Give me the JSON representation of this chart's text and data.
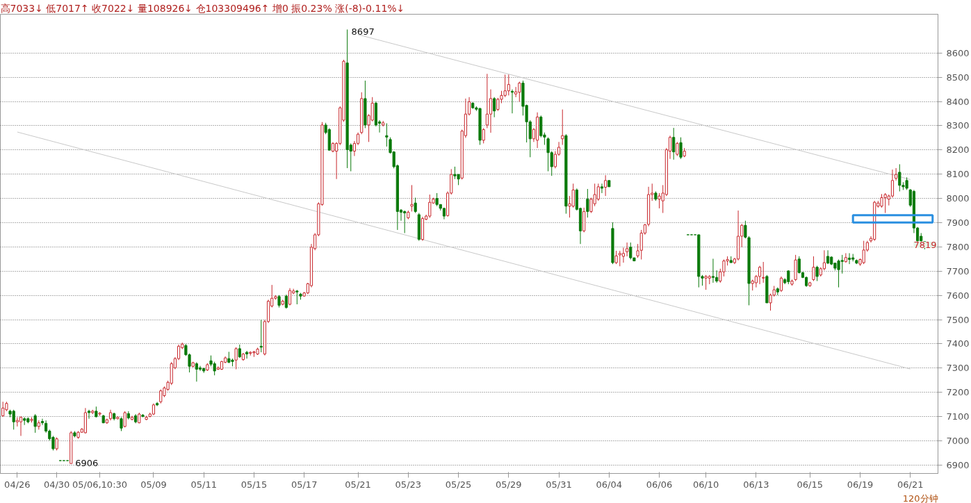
{
  "chart_data": {
    "type": "candlestick",
    "title": "高7033↓ 低7017↑ 收7022↓ 量108926↓ 仓103309496↑ 增0 振0.23% 涨(-8)-0.11%↓",
    "categories": [
      null,
      null,
      null,
      null,
      "04/26",
      null,
      null,
      null,
      null,
      null,
      null,
      null,
      null,
      null,
      null,
      "04/30",
      null,
      null,
      null,
      null,
      null,
      null,
      null,
      null,
      null,
      null,
      null,
      "05/06,10:30",
      null,
      null,
      null,
      null,
      null,
      null,
      null,
      null,
      null,
      null,
      null,
      null,
      null,
      null,
      "05/09",
      null,
      null,
      null,
      null,
      null,
      null,
      null,
      null,
      null,
      null,
      null,
      null,
      null,
      "05/11",
      null,
      null,
      null,
      null,
      null,
      null,
      null,
      null,
      null,
      null,
      null,
      null,
      null,
      "05/15",
      null,
      null,
      null,
      null,
      null,
      null,
      null,
      null,
      null,
      null,
      null,
      null,
      null,
      "05/17",
      null,
      null,
      null,
      null,
      null,
      null,
      null,
      null,
      null,
      null,
      null,
      null,
      null,
      null,
      "05/21",
      null,
      null,
      null,
      null,
      null,
      null,
      null,
      null,
      null,
      null,
      null,
      null,
      null,
      "05/23",
      null,
      null,
      null,
      null,
      null,
      null,
      null,
      null,
      null,
      null,
      null,
      null,
      null,
      "05/25",
      null,
      null,
      null,
      null,
      null,
      null,
      null,
      null,
      null,
      null,
      null,
      null,
      null,
      "05/29",
      null,
      null,
      null,
      null,
      null,
      null,
      null,
      null,
      null,
      null,
      null,
      null,
      null,
      "05/31",
      null,
      null,
      null,
      null,
      null,
      null,
      null,
      null,
      null,
      null,
      null,
      null,
      null,
      "06/04",
      null,
      null,
      null,
      null,
      null,
      null,
      null,
      null,
      null,
      null,
      null,
      null,
      null,
      "06/06",
      null,
      null,
      null,
      null,
      null,
      null,
      null,
      null,
      null,
      null,
      null,
      null,
      "06/10",
      null,
      null,
      null,
      null,
      null,
      null,
      null,
      null,
      null,
      null,
      null,
      null,
      null,
      "06/13",
      null,
      null,
      null,
      null,
      null,
      null,
      null,
      null,
      null,
      null,
      null,
      null,
      null,
      null,
      "06/15",
      null,
      null,
      null,
      null,
      null,
      null,
      null,
      null,
      null,
      null,
      null,
      null,
      null,
      "06/19",
      null,
      null,
      null,
      null,
      null,
      null,
      null,
      null,
      null,
      null,
      null,
      null,
      null,
      "06/21",
      null,
      null,
      null,
      null
    ],
    "ohlc": [
      [
        7103,
        7161,
        7099,
        7135
      ],
      [
        7128,
        7161,
        7122,
        7154
      ],
      [
        7122,
        7128,
        7097,
        7110
      ],
      [
        7122,
        7128,
        7046,
        7078
      ],
      [
        7078,
        7097,
        7059,
        7084
      ],
      [
        7078,
        7100,
        7020,
        7097
      ],
      [
        7091,
        7097,
        7065,
        7084
      ],
      [
        7091,
        7097,
        7072,
        7078
      ],
      [
        7084,
        7097,
        7075,
        7088
      ],
      [
        7103,
        7110,
        7033,
        7059
      ],
      [
        7059,
        7084,
        7046,
        7074
      ],
      [
        7080,
        7091,
        7065,
        7074
      ],
      [
        7072,
        7084,
        7033,
        7040
      ],
      [
        7040,
        7046,
        7001,
        7008
      ],
      [
        7014,
        7020,
        6960,
        6967
      ],
      [
        6967,
        7014,
        6960,
        7008
      ],
      [
        6918,
        6918,
        6918,
        6918
      ],
      [
        6918,
        6918,
        6918,
        6918
      ],
      [
        6918,
        6918,
        6918,
        6918
      ],
      [
        6906,
        7040,
        6906,
        7033
      ],
      [
        7033,
        7040,
        7014,
        7020
      ],
      [
        7014,
        7040,
        7008,
        7035
      ],
      [
        7035,
        7052,
        7033,
        7048
      ],
      [
        7033,
        7135,
        7030,
        7116
      ],
      [
        7122,
        7128,
        7091,
        7116
      ],
      [
        7116,
        7128,
        7110,
        7122
      ],
      [
        7122,
        7141,
        7097,
        7099
      ],
      [
        7110,
        7118,
        7103,
        7114
      ],
      [
        7103,
        7107,
        7072,
        7074
      ],
      [
        7074,
        7091,
        7070,
        7087
      ],
      [
        7091,
        7128,
        7084,
        7116
      ],
      [
        7112,
        7116,
        7084,
        7091
      ],
      [
        7091,
        7100,
        7088,
        7097
      ],
      [
        7091,
        7097,
        7040,
        7052
      ],
      [
        7059,
        7122,
        7055,
        7116
      ],
      [
        7112,
        7122,
        7088,
        7094
      ],
      [
        7088,
        7103,
        7084,
        7097
      ],
      [
        7103,
        7110,
        7072,
        7078
      ],
      [
        7074,
        7116,
        7072,
        7110
      ],
      [
        7106,
        7110,
        7097,
        7100
      ],
      [
        7088,
        7103,
        7085,
        7097
      ],
      [
        7100,
        7116,
        7097,
        7110
      ],
      [
        7110,
        7154,
        7106,
        7148
      ],
      [
        7154,
        7160,
        7143,
        7148
      ],
      [
        7161,
        7212,
        7154,
        7206
      ],
      [
        7186,
        7224,
        7180,
        7218
      ],
      [
        7212,
        7248,
        7206,
        7241
      ],
      [
        7237,
        7325,
        7230,
        7318
      ],
      [
        7301,
        7345,
        7295,
        7339
      ],
      [
        7339,
        7397,
        7333,
        7390
      ],
      [
        7384,
        7405,
        7378,
        7399
      ],
      [
        7393,
        7399,
        7350,
        7355
      ],
      [
        7355,
        7360,
        7282,
        7307
      ],
      [
        7307,
        7326,
        7303,
        7322
      ],
      [
        7318,
        7324,
        7244,
        7295
      ],
      [
        7301,
        7309,
        7288,
        7295
      ],
      [
        7298,
        7301,
        7280,
        7288
      ],
      [
        7292,
        7320,
        7288,
        7314
      ],
      [
        7330,
        7352,
        7307,
        7316
      ],
      [
        7318,
        7326,
        7270,
        7288
      ],
      [
        7295,
        7307,
        7292,
        7301
      ],
      [
        7295,
        7330,
        7292,
        7327
      ],
      [
        7324,
        7348,
        7320,
        7342
      ],
      [
        7339,
        7367,
        7320,
        7324
      ],
      [
        7333,
        7339,
        7307,
        7327
      ],
      [
        7333,
        7386,
        7295,
        7380
      ],
      [
        7380,
        7397,
        7342,
        7346
      ],
      [
        7335,
        7362,
        7330,
        7358
      ],
      [
        7365,
        7371,
        7339,
        7358
      ],
      [
        7361,
        7369,
        7352,
        7365
      ],
      [
        7363,
        7371,
        7346,
        7367
      ],
      [
        7358,
        7384,
        7354,
        7378
      ],
      [
        7390,
        7499,
        7365,
        7386
      ],
      [
        7358,
        7499,
        7352,
        7492
      ],
      [
        7492,
        7582,
        7486,
        7576
      ],
      [
        7556,
        7643,
        7550,
        7588
      ],
      [
        7588,
        7601,
        7582,
        7595
      ],
      [
        7595,
        7601,
        7550,
        7559
      ],
      [
        7563,
        7582,
        7559,
        7576
      ],
      [
        7597,
        7603,
        7545,
        7550
      ],
      [
        7563,
        7630,
        7559,
        7620
      ],
      [
        7610,
        7627,
        7605,
        7618
      ],
      [
        7618,
        7622,
        7563,
        7614
      ],
      [
        7605,
        7610,
        7582,
        7597
      ],
      [
        7597,
        7614,
        7595,
        7610
      ],
      [
        7610,
        7652,
        7605,
        7648
      ],
      [
        7640,
        7812,
        7633,
        7799
      ],
      [
        7793,
        7857,
        7786,
        7850
      ],
      [
        7850,
        7984,
        7844,
        7978
      ],
      [
        7975,
        8315,
        7970,
        8303
      ],
      [
        8303,
        8312,
        8265,
        8272
      ],
      [
        8284,
        8290,
        8199,
        8199
      ],
      [
        8195,
        8232,
        8190,
        8227
      ],
      [
        8195,
        8232,
        8080,
        8227
      ],
      [
        8227,
        8380,
        8220,
        8374
      ],
      [
        8323,
        8572,
        8316,
        8566
      ],
      [
        8559,
        8697,
        8125,
        8201
      ],
      [
        8220,
        8227,
        8112,
        8195
      ],
      [
        8195,
        8237,
        8175,
        8227
      ],
      [
        8227,
        8272,
        8220,
        8265
      ],
      [
        8272,
        8438,
        8265,
        8412
      ],
      [
        8412,
        8486,
        8290,
        8303
      ],
      [
        8303,
        8348,
        8233,
        8342
      ],
      [
        8323,
        8418,
        8318,
        8393
      ],
      [
        8393,
        8400,
        8297,
        8303
      ],
      [
        8316,
        8323,
        8272,
        8310
      ],
      [
        8303,
        8320,
        8297,
        8312
      ],
      [
        8259,
        8310,
        8214,
        8253
      ],
      [
        8243,
        8252,
        8185,
        8189
      ],
      [
        8192,
        8195,
        8124,
        8131
      ],
      [
        8135,
        8140,
        7870,
        7946
      ],
      [
        7952,
        7956,
        7908,
        7943
      ],
      [
        7946,
        7950,
        7857,
        7940
      ],
      [
        7920,
        7950,
        7914,
        7943
      ],
      [
        7968,
        8055,
        7946,
        7975
      ],
      [
        7981,
        8003,
        7940,
        7946
      ],
      [
        7933,
        7940,
        7825,
        7831
      ],
      [
        7831,
        7924,
        7825,
        7917
      ],
      [
        7914,
        7933,
        7910,
        7927
      ],
      [
        7927,
        8016,
        7920,
        7984
      ],
      [
        7981,
        8003,
        7978,
        7997
      ],
      [
        8000,
        8022,
        7968,
        7975
      ],
      [
        7975,
        7975,
        7950,
        7959
      ],
      [
        7959,
        7962,
        7914,
        7927
      ],
      [
        7929,
        8029,
        7925,
        8022
      ],
      [
        8022,
        8121,
        8016,
        8099
      ],
      [
        8099,
        8131,
        8080,
        8093
      ],
      [
        8099,
        8099,
        8055,
        8080
      ],
      [
        8084,
        8284,
        8078,
        8278
      ],
      [
        8259,
        8412,
        8250,
        8348
      ],
      [
        8348,
        8418,
        8342,
        8399
      ],
      [
        8393,
        8397,
        8370,
        8374
      ],
      [
        8374,
        8380,
        8361,
        8368
      ],
      [
        8371,
        8374,
        8221,
        8240
      ],
      [
        8240,
        8290,
        8227,
        8284
      ],
      [
        8303,
        8514,
        8290,
        8348
      ],
      [
        8348,
        8450,
        8271,
        8412
      ],
      [
        8412,
        8418,
        8335,
        8361
      ],
      [
        8367,
        8415,
        8361,
        8409
      ],
      [
        8409,
        8444,
        8393,
        8425
      ],
      [
        8425,
        8511,
        8418,
        8444
      ],
      [
        8444,
        8511,
        8425,
        8470
      ],
      [
        8442,
        8450,
        8351,
        8438
      ],
      [
        8431,
        8460,
        8418,
        8440
      ],
      [
        8438,
        8482,
        8399,
        8476
      ],
      [
        8476,
        8486,
        8342,
        8380
      ],
      [
        8384,
        8387,
        8231,
        8316
      ],
      [
        8316,
        8323,
        8170,
        8246
      ],
      [
        8246,
        8290,
        8233,
        8285
      ],
      [
        8240,
        8355,
        8208,
        8336
      ],
      [
        8336,
        8342,
        8252,
        8259
      ],
      [
        8262,
        8272,
        8221,
        8253
      ],
      [
        8246,
        8252,
        8112,
        8189
      ],
      [
        8189,
        8195,
        8093,
        8131
      ],
      [
        8131,
        8195,
        8124,
        8182
      ],
      [
        8182,
        8233,
        8176,
        8211
      ],
      [
        8246,
        8367,
        8221,
        8259
      ],
      [
        8259,
        8265,
        7937,
        7968
      ],
      [
        7968,
        8010,
        7921,
        7978
      ],
      [
        7968,
        8061,
        7962,
        8035
      ],
      [
        8035,
        8041,
        7950,
        7955
      ],
      [
        7959,
        7962,
        7812,
        7866
      ],
      [
        7866,
        7962,
        7860,
        7946
      ],
      [
        7997,
        8039,
        7921,
        7946
      ],
      [
        7946,
        8003,
        7940,
        7997
      ],
      [
        7978,
        8061,
        7968,
        8016
      ],
      [
        7997,
        8061,
        7990,
        8048
      ],
      [
        8048,
        8061,
        8022,
        8042
      ],
      [
        8046,
        8096,
        8010,
        8074
      ],
      [
        8074,
        8074,
        8048,
        8048
      ],
      [
        7876,
        7901,
        7729,
        7735
      ],
      [
        7735,
        7784,
        7729,
        7763
      ],
      [
        7767,
        7784,
        7720,
        7773
      ],
      [
        7761,
        7797,
        7735,
        7773
      ],
      [
        7780,
        7818,
        7761,
        7793
      ],
      [
        7799,
        7818,
        7748,
        7755
      ],
      [
        7755,
        7755,
        7742,
        7742
      ],
      [
        7763,
        7812,
        7755,
        7784
      ],
      [
        7786,
        7870,
        7748,
        7857
      ],
      [
        7857,
        7895,
        7850,
        7891
      ],
      [
        7893,
        8048,
        7885,
        8016
      ],
      [
        8016,
        8061,
        7990,
        8022
      ],
      [
        8022,
        8029,
        7990,
        7997
      ],
      [
        7997,
        8022,
        7959,
        8010
      ],
      [
        7990,
        8055,
        7940,
        8022
      ],
      [
        8016,
        8208,
        8010,
        8201
      ],
      [
        8195,
        8259,
        8163,
        8252
      ],
      [
        8252,
        8291,
        8160,
        8192
      ],
      [
        8182,
        8233,
        8175,
        8227
      ],
      [
        8230,
        8252,
        8163,
        8170
      ],
      [
        8175,
        8208,
        8170,
        8195
      ],
      [
        7850,
        7850,
        7850,
        7850
      ],
      [
        7850,
        7850,
        7850,
        7850
      ],
      [
        7850,
        7850,
        7850,
        7850
      ],
      [
        7850,
        7850,
        7633,
        7678
      ],
      [
        7678,
        7684,
        7640,
        7671
      ],
      [
        7671,
        7684,
        7623,
        7678
      ],
      [
        7671,
        7684,
        7646,
        7678
      ],
      [
        7678,
        7751,
        7652,
        7674
      ],
      [
        7674,
        7703,
        7652,
        7659
      ],
      [
        7659,
        7710,
        7652,
        7697
      ],
      [
        7697,
        7748,
        7678,
        7742
      ],
      [
        7742,
        7761,
        7723,
        7748
      ],
      [
        7744,
        7761,
        7735,
        7735
      ],
      [
        7735,
        7755,
        7729,
        7750
      ],
      [
        7750,
        7950,
        7744,
        7844
      ],
      [
        7844,
        7895,
        7799,
        7889
      ],
      [
        7889,
        7908,
        7835,
        7840
      ],
      [
        7838,
        7844,
        7559,
        7649
      ],
      [
        7649,
        7665,
        7620,
        7659
      ],
      [
        7652,
        7684,
        7633,
        7678
      ],
      [
        7678,
        7722,
        7646,
        7716
      ],
      [
        7671,
        7738,
        7652,
        7674
      ],
      [
        7678,
        7684,
        7569,
        7569
      ],
      [
        7569,
        7607,
        7537,
        7601
      ],
      [
        7601,
        7639,
        7595,
        7623
      ],
      [
        7627,
        7633,
        7601,
        7614
      ],
      [
        7620,
        7678,
        7614,
        7671
      ],
      [
        7665,
        7671,
        7646,
        7652
      ],
      [
        7701,
        7703,
        7646,
        7656
      ],
      [
        7646,
        7665,
        7640,
        7659
      ],
      [
        7665,
        7767,
        7659,
        7746
      ],
      [
        7750,
        7761,
        7690,
        7694
      ],
      [
        7694,
        7697,
        7671,
        7674
      ],
      [
        7674,
        7678,
        7635,
        7640
      ],
      [
        7640,
        7656,
        7635,
        7652
      ],
      [
        7665,
        7761,
        7659,
        7716
      ],
      [
        7716,
        7722,
        7659,
        7678
      ],
      [
        7684,
        7716,
        7678,
        7710
      ],
      [
        7710,
        7786,
        7703,
        7735
      ],
      [
        7761,
        7786,
        7729,
        7733
      ],
      [
        7758,
        7761,
        7725,
        7729
      ],
      [
        7733,
        7735,
        7703,
        7712
      ],
      [
        7742,
        7748,
        7633,
        7706
      ],
      [
        7744,
        7767,
        7690,
        7740
      ],
      [
        7739,
        7774,
        7735,
        7756
      ],
      [
        7754,
        7774,
        7729,
        7748
      ],
      [
        7755,
        7771,
        7740,
        7749
      ],
      [
        7744,
        7748,
        7729,
        7733
      ],
      [
        7729,
        7752,
        7722,
        7748
      ],
      [
        7735,
        7825,
        7729,
        7787
      ],
      [
        7787,
        7825,
        7780,
        7818
      ],
      [
        7825,
        7844,
        7818,
        7835
      ],
      [
        7831,
        7990,
        7825,
        7984
      ],
      [
        7968,
        7990,
        7962,
        7981
      ],
      [
        7968,
        8018,
        7962,
        8003
      ],
      [
        8003,
        8022,
        7940,
        8016
      ],
      [
        7997,
        8016,
        7971,
        8010
      ],
      [
        8010,
        8119,
        8003,
        8074
      ],
      [
        8083,
        8125,
        8074,
        8099
      ],
      [
        8108,
        8141,
        8029,
        8054
      ],
      [
        8054,
        8067,
        8035,
        8048
      ],
      [
        8074,
        8087,
        8035,
        8042
      ],
      [
        8035,
        8039,
        7965,
        7972
      ],
      [
        8029,
        8035,
        7857,
        7878
      ],
      [
        7878,
        7882,
        7818,
        7825
      ],
      [
        7844,
        7857,
        7812,
        7825
      ],
      [
        7822,
        7824,
        7790,
        7819
      ]
    ],
    "series": [
      {
        "type": "line",
        "x": [
          "05/21",
          "06/21"
        ],
        "values": [
          8676,
          8078
        ],
        "color": "#c8c8c8"
      },
      {
        "type": "line",
        "x": [
          "04/26",
          "06/21"
        ],
        "values": [
          8274,
          7296
        ],
        "color": "#c8c8c8"
      }
    ],
    "ylim": [
      6865,
      8760
    ],
    "yticks": [
      6900,
      7000,
      7100,
      7200,
      7300,
      7400,
      7500,
      7600,
      7700,
      7800,
      7900,
      8000,
      8100,
      8200,
      8300,
      8400,
      8500,
      8600
    ],
    "grid": "y",
    "annotations": [
      "8697",
      "6906",
      "7819",
      "120分钟"
    ]
  }
}
